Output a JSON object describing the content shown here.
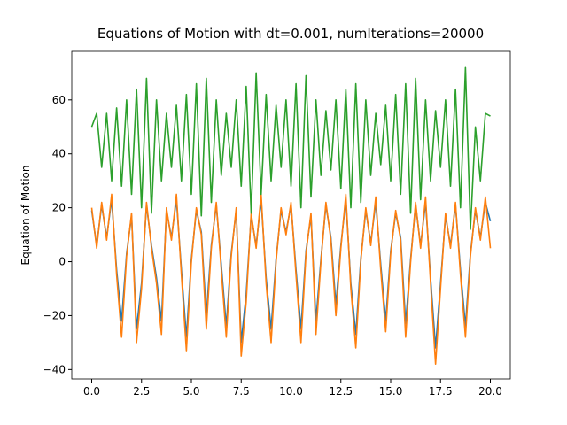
{
  "chart_data": {
    "type": "line",
    "title": "Equations of Motion with dt=0.001, numIterations=20000",
    "y_label": "Equation of Motion",
    "x": [
      0,
      0.25,
      0.5,
      0.75,
      1,
      1.25,
      1.5,
      1.75,
      2,
      2.25,
      2.5,
      2.75,
      3,
      3.25,
      3.5,
      3.75,
      4,
      4.25,
      4.5,
      4.75,
      5,
      5.25,
      5.5,
      5.75,
      6,
      6.25,
      6.5,
      6.75,
      7,
      7.25,
      7.5,
      7.75,
      8,
      8.25,
      8.5,
      8.75,
      9,
      9.25,
      9.5,
      9.75,
      10,
      10.25,
      10.5,
      10.75,
      11,
      11.25,
      11.5,
      11.75,
      12,
      12.25,
      12.5,
      12.75,
      13,
      13.25,
      13.5,
      13.75,
      14,
      14.25,
      14.5,
      14.75,
      15,
      15.25,
      15.5,
      15.75,
      16,
      16.25,
      16.5,
      16.75,
      17,
      17.25,
      17.5,
      17.75,
      18,
      18.25,
      18.5,
      18.75,
      19,
      19.25,
      19.5,
      19.75,
      20
    ],
    "series": [
      {
        "color": "#1f77b4",
        "values": [
          19,
          6,
          21,
          9,
          23,
          -3,
          -22,
          3,
          17,
          -25,
          -8,
          21,
          6,
          -6,
          -22,
          19,
          9,
          23,
          -3,
          -28,
          1,
          19,
          11,
          -20,
          6,
          21,
          -1,
          -24,
          3,
          19,
          -30,
          -12,
          17,
          6,
          23,
          -6,
          -25,
          1,
          19,
          11,
          21,
          -3,
          -25,
          4,
          17,
          -22,
          1,
          21,
          9,
          -16,
          6,
          23,
          -8,
          -27,
          1,
          19,
          7,
          22,
          -1,
          -22,
          4,
          18,
          9,
          -23,
          1,
          21,
          6,
          22,
          -6,
          -32,
          -8,
          17,
          6,
          21,
          -3,
          -24,
          3,
          19,
          9,
          22,
          15
        ]
      },
      {
        "color": "#ff7f0e",
        "values": [
          20,
          5,
          22,
          8,
          25,
          -5,
          -28,
          2,
          18,
          -30,
          -10,
          22,
          5,
          -8,
          -27,
          20,
          8,
          25,
          -5,
          -33,
          0,
          20,
          10,
          -25,
          5,
          22,
          -3,
          -28,
          2,
          20,
          -35,
          -15,
          18,
          5,
          25,
          -8,
          -30,
          0,
          20,
          10,
          22,
          -5,
          -30,
          3,
          18,
          -27,
          0,
          22,
          8,
          -20,
          5,
          25,
          -10,
          -32,
          0,
          20,
          6,
          24,
          -3,
          -26,
          3,
          19,
          8,
          -28,
          0,
          22,
          5,
          24,
          -8,
          -38,
          -10,
          18,
          5,
          22,
          -5,
          -28,
          2,
          20,
          8,
          24,
          5
        ]
      },
      {
        "color": "#2ca02c",
        "values": [
          50,
          55,
          35,
          55,
          30,
          57,
          28,
          60,
          25,
          64,
          20,
          68,
          18,
          60,
          30,
          55,
          35,
          58,
          30,
          62,
          25,
          66,
          17,
          68,
          22,
          60,
          32,
          55,
          35,
          60,
          28,
          65,
          18,
          70,
          25,
          62,
          30,
          58,
          35,
          60,
          28,
          66,
          20,
          69,
          24,
          60,
          32,
          56,
          34,
          60,
          27,
          64,
          20,
          66,
          22,
          60,
          32,
          55,
          36,
          58,
          30,
          62,
          25,
          66,
          18,
          68,
          23,
          60,
          30,
          56,
          35,
          60,
          28,
          64,
          20,
          72,
          12,
          50,
          30,
          55,
          54
        ]
      }
    ],
    "xlim": [
      -1,
      21
    ],
    "ylim": [
      -43.5,
      78
    ],
    "xticks": [
      {
        "value": 0,
        "label": "0.0"
      },
      {
        "value": 2.5,
        "label": "2.5"
      },
      {
        "value": 5,
        "label": "5.0"
      },
      {
        "value": 7.5,
        "label": "7.5"
      },
      {
        "value": 10,
        "label": "10.0"
      },
      {
        "value": 12.5,
        "label": "12.5"
      },
      {
        "value": 15,
        "label": "15.0"
      },
      {
        "value": 17.5,
        "label": "17.5"
      },
      {
        "value": 20,
        "label": "20.0"
      }
    ],
    "yticks": [
      {
        "value": -40,
        "label": "−40"
      },
      {
        "value": -20,
        "label": "−20"
      },
      0,
      20,
      40,
      60,
      {
        "value": 0,
        "label": "0"
      }
    ]
  }
}
